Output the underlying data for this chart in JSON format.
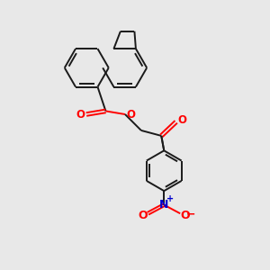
{
  "background_color": "#e8e8e8",
  "bond_color": "#1a1a1a",
  "oxygen_color": "#ff0000",
  "nitrogen_color": "#0000cc",
  "line_width": 1.4,
  "figsize": [
    3.0,
    3.0
  ],
  "dpi": 100,
  "xlim": [
    0,
    10
  ],
  "ylim": [
    0,
    10
  ]
}
